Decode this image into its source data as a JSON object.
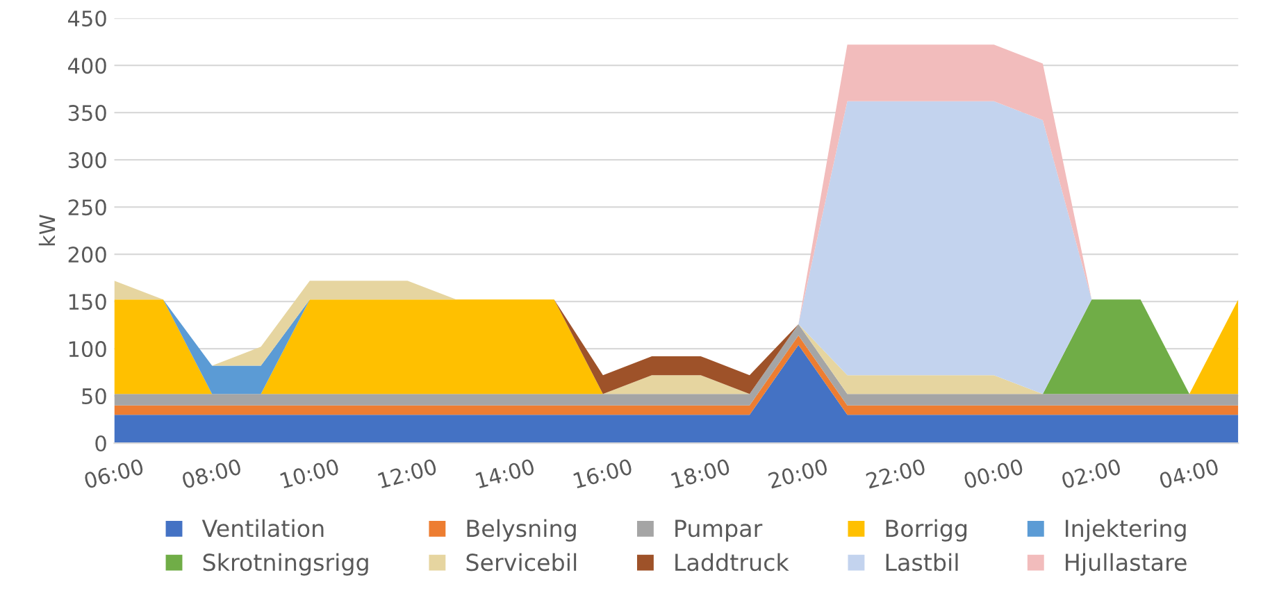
{
  "chart_data": {
    "type": "area",
    "stacked": true,
    "ylabel": "kW",
    "x": [
      "2000-01-01T06:00",
      "2000-01-01T07:00",
      "2000-01-01T08:00",
      "2000-01-01T09:00",
      "2000-01-01T10:00",
      "2000-01-01T11:00",
      "2000-01-01T12:00",
      "2000-01-01T13:00",
      "2000-01-01T14:00",
      "2000-01-01T15:00",
      "2000-01-01T16:00",
      "2000-01-01T17:00",
      "2000-01-01T18:00",
      "2000-01-01T19:00",
      "2000-01-01T20:00",
      "2000-01-01T21:00",
      "2000-01-01T22:00",
      "2000-01-01T23:00",
      "2000-01-02T00:00",
      "2000-01-02T01:00",
      "2000-01-02T02:00",
      "2000-01-02T03:00",
      "2000-01-02T04:00",
      "2000-01-02T05:00"
    ],
    "xlim": [
      "2000-01-01T06:00",
      "2000-01-02T05:00"
    ],
    "xticks": [
      {
        "value": "2000-01-01T06:00",
        "label": "06:00"
      },
      {
        "value": "2000-01-01T08:00",
        "label": "08:00"
      },
      {
        "value": "2000-01-01T10:00",
        "label": "10:00"
      },
      {
        "value": "2000-01-01T12:00",
        "label": "12:00"
      },
      {
        "value": "2000-01-01T14:00",
        "label": "14:00"
      },
      {
        "value": "2000-01-01T16:00",
        "label": "16:00"
      },
      {
        "value": "2000-01-01T18:00",
        "label": "18:00"
      },
      {
        "value": "2000-01-01T20:00",
        "label": "20:00"
      },
      {
        "value": "2000-01-01T22:00",
        "label": "22:00"
      },
      {
        "value": "2000-01-02T00:00",
        "label": "00:00"
      },
      {
        "value": "2000-01-02T02:00",
        "label": "02:00"
      },
      {
        "value": "2000-01-02T04:00",
        "label": "04:00"
      }
    ],
    "ylim": [
      0,
      450
    ],
    "yticks": [
      0,
      50,
      100,
      150,
      200,
      250,
      300,
      350,
      400,
      450
    ],
    "grid": "y",
    "legend": "bottom",
    "series": [
      {
        "name": "Ventilation",
        "color": "#4472c4",
        "values": [
          30,
          30,
          30,
          30,
          30,
          30,
          30,
          30,
          30,
          30,
          30,
          30,
          30,
          30,
          104,
          30,
          30,
          30,
          30,
          30,
          30,
          30,
          30,
          30
        ]
      },
      {
        "name": "Belysning",
        "color": "#ed7d31",
        "values": [
          10,
          10,
          10,
          10,
          10,
          10,
          10,
          10,
          10,
          10,
          10,
          10,
          10,
          10,
          10,
          10,
          10,
          10,
          10,
          10,
          10,
          10,
          10,
          10
        ]
      },
      {
        "name": "Pumpar",
        "color": "#a5a5a5",
        "values": [
          12,
          12,
          12,
          12,
          12,
          12,
          12,
          12,
          12,
          12,
          12,
          12,
          12,
          12,
          12,
          12,
          12,
          12,
          12,
          12,
          12,
          12,
          12,
          12
        ]
      },
      {
        "name": "Borrigg",
        "color": "#ffc000",
        "values": [
          100,
          100,
          0,
          0,
          100,
          100,
          100,
          100,
          100,
          100,
          0,
          null,
          null,
          null,
          null,
          null,
          null,
          null,
          null,
          null,
          null,
          null,
          0,
          100
        ]
      },
      {
        "name": "Injektering",
        "color": "#5b9bd5",
        "values": [
          null,
          0,
          30,
          30,
          0,
          null,
          null,
          null,
          null,
          null,
          null,
          null,
          null,
          null,
          null,
          null,
          null,
          null,
          null,
          null,
          null,
          null,
          null,
          null
        ]
      },
      {
        "name": "Skrotningsrigg",
        "color": "#70ad47",
        "values": [
          null,
          null,
          null,
          null,
          null,
          null,
          null,
          null,
          null,
          null,
          null,
          null,
          null,
          null,
          null,
          null,
          null,
          null,
          null,
          0,
          100,
          100,
          0,
          null
        ]
      },
      {
        "name": "Servicebil",
        "color": "#e6d5a0",
        "values": [
          20,
          0,
          0,
          20,
          20,
          20,
          20,
          0,
          null,
          null,
          0,
          20,
          20,
          0,
          0,
          20,
          20,
          20,
          20,
          0,
          null,
          null,
          null,
          null
        ]
      },
      {
        "name": "Laddtruck",
        "color": "#9e5229",
        "values": [
          null,
          null,
          null,
          null,
          null,
          null,
          null,
          null,
          null,
          0,
          20,
          20,
          20,
          20,
          0,
          null,
          null,
          null,
          null,
          null,
          null,
          null,
          null,
          null
        ]
      },
      {
        "name": "Lastbil",
        "color": "#c3d3ee",
        "values": [
          null,
          null,
          null,
          null,
          null,
          null,
          null,
          null,
          null,
          null,
          null,
          null,
          null,
          null,
          0,
          290,
          290,
          290,
          290,
          290,
          0,
          null,
          null,
          null
        ]
      },
      {
        "name": "Hjullastare",
        "color": "#f2bcbc",
        "values": [
          null,
          null,
          null,
          null,
          null,
          null,
          null,
          null,
          null,
          null,
          null,
          null,
          null,
          null,
          0,
          60,
          60,
          60,
          60,
          60,
          0,
          null,
          null,
          null
        ]
      }
    ]
  }
}
